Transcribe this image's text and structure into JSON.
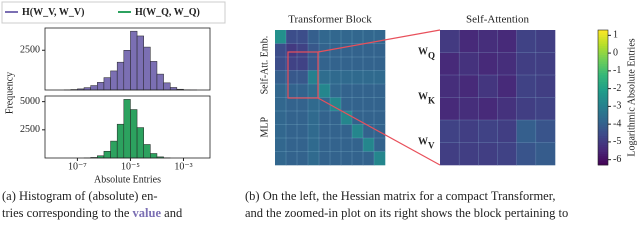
{
  "chart_data": [
    {
      "type": "histogram",
      "x_scale": "log",
      "xlim": [
        6e-09,
        0.01
      ],
      "ylim": [
        0,
        3900
      ],
      "yticks": [
        2500
      ],
      "bins": [
        3.162e-08,
        5.623e-08,
        1e-07,
        1.778e-07,
        3.162e-07,
        5.623e-07,
        1e-06,
        1.778e-06,
        3.162e-06,
        5.623e-06,
        1e-05,
        1.778e-05,
        3.162e-05,
        5.623e-05,
        0.0001,
        0.0001778,
        0.0003162,
        0.0005623,
        0.001,
        0.001778,
        0.003162
      ],
      "series": [
        {
          "name": "H(W_V, W_V)",
          "color": "#7b6fb3",
          "values": [
            10,
            30,
            70,
            150,
            280,
            480,
            780,
            1200,
            1750,
            2500,
            3700,
            3400,
            2700,
            1800,
            1000,
            450,
            160,
            50,
            15,
            5
          ]
        }
      ]
    },
    {
      "type": "histogram",
      "x_scale": "log",
      "xlim": [
        6e-09,
        0.01
      ],
      "ylim": [
        0,
        5500
      ],
      "yticks": [
        2500,
        5000
      ],
      "xticks": [
        {
          "value": 1e-07,
          "label": "10⁻⁷"
        },
        {
          "value": 1e-05,
          "label": "10⁻⁵"
        },
        {
          "value": 0.001,
          "label": "10⁻³"
        }
      ],
      "x_label": "Absolute Entries",
      "y_label": "Frequency",
      "bins": [
        3.162e-08,
        5.623e-08,
        1e-07,
        1.778e-07,
        3.162e-07,
        5.623e-07,
        1e-06,
        1.778e-06,
        3.162e-06,
        5.623e-06,
        1e-05,
        1.778e-05,
        3.162e-05,
        5.623e-05,
        0.0001,
        0.0001778,
        0.0003162,
        0.0005623,
        0.001,
        0.001778,
        0.003162
      ],
      "series": [
        {
          "name": "H(W_Q, W_Q)",
          "color": "#2ca25f",
          "values": [
            0,
            0,
            0,
            10,
            50,
            200,
            600,
            1500,
            3000,
            5200,
            4300,
            2700,
            1200,
            400,
            100,
            20,
            0,
            0,
            0,
            0
          ]
        }
      ]
    },
    {
      "type": "heatmap",
      "title": "Transformer Block",
      "row_labels": [
        "Self-Att. Emb.",
        "MLP"
      ],
      "zlim": [
        -6.3,
        1.3
      ],
      "colormap": "viridis",
      "z": [
        [
          -2.5,
          -4.5,
          -4.5,
          -4.0,
          -3.8,
          -3.8,
          -3.8,
          -3.8,
          -3.8,
          -3.8
        ],
        [
          -4.5,
          -5.0,
          -4.8,
          -4.2,
          -3.9,
          -3.9,
          -3.9,
          -3.9,
          -3.9,
          -3.9
        ],
        [
          -4.5,
          -4.8,
          -4.8,
          -4.2,
          -3.9,
          -3.9,
          -3.9,
          -3.9,
          -3.9,
          -3.9
        ],
        [
          -4.0,
          -4.2,
          -4.2,
          -3.0,
          -3.6,
          -3.7,
          -3.7,
          -3.7,
          -3.7,
          -3.7
        ],
        [
          -3.8,
          -3.9,
          -3.9,
          -3.6,
          -2.8,
          -3.8,
          -3.9,
          -3.9,
          -3.9,
          -3.9
        ],
        [
          -3.8,
          -3.9,
          -3.9,
          -3.7,
          -3.8,
          -2.8,
          -3.9,
          -3.9,
          -3.9,
          -3.9
        ],
        [
          -3.8,
          -3.9,
          -3.9,
          -3.7,
          -3.9,
          -3.9,
          -2.8,
          -3.9,
          -3.9,
          -3.9
        ],
        [
          -3.8,
          -3.9,
          -3.9,
          -3.7,
          -3.9,
          -3.9,
          -3.9,
          -2.8,
          -3.9,
          -3.9
        ],
        [
          -3.8,
          -3.9,
          -3.9,
          -3.7,
          -3.9,
          -3.9,
          -3.9,
          -3.9,
          -2.8,
          -3.9
        ],
        [
          -3.8,
          -3.9,
          -3.9,
          -3.7,
          -3.9,
          -3.9,
          -3.9,
          -3.9,
          -3.9,
          -2.8
        ]
      ]
    },
    {
      "type": "heatmap",
      "title": "Self-Attention",
      "zlim": [
        -6.3,
        1.3
      ],
      "colormap": "viridis",
      "row_labels": [
        {
          "base": "W",
          "sub": "Q",
          "color": "#2ca25f"
        },
        {
          "base": "W",
          "sub": "K",
          "color": "#8a9a2a"
        },
        {
          "base": "W",
          "sub": "V",
          "color": "#7b6fb3"
        }
      ],
      "colorbar_label": "Logarithmic Absolute Entries",
      "zticks": [
        1,
        0,
        -1,
        -2,
        -3,
        -4,
        -5,
        -6
      ],
      "z": [
        [
          -5.0,
          -5.4,
          -5.3,
          -5.4,
          -4.8,
          -4.9
        ],
        [
          -5.4,
          -5.2,
          -5.4,
          -5.3,
          -4.9,
          -4.9
        ],
        [
          -5.3,
          -5.4,
          -5.1,
          -5.4,
          -4.8,
          -4.9
        ],
        [
          -5.4,
          -5.3,
          -5.4,
          -5.2,
          -4.9,
          -4.8
        ],
        [
          -4.8,
          -4.9,
          -4.8,
          -4.9,
          -4.0,
          -4.3
        ],
        [
          -4.9,
          -4.9,
          -4.9,
          -4.8,
          -4.3,
          -4.1
        ]
      ]
    }
  ],
  "captions": {
    "a": [
      "(a)  Histogram of (absolute) en-",
      [
        "tries corresponding to the ",
        "value",
        " and"
      ]
    ],
    "b": [
      "(b)  On the left, the Hessian matrix for a compact Transformer,",
      "and the zoomed-in plot on its right shows the block pertaining to"
    ]
  }
}
